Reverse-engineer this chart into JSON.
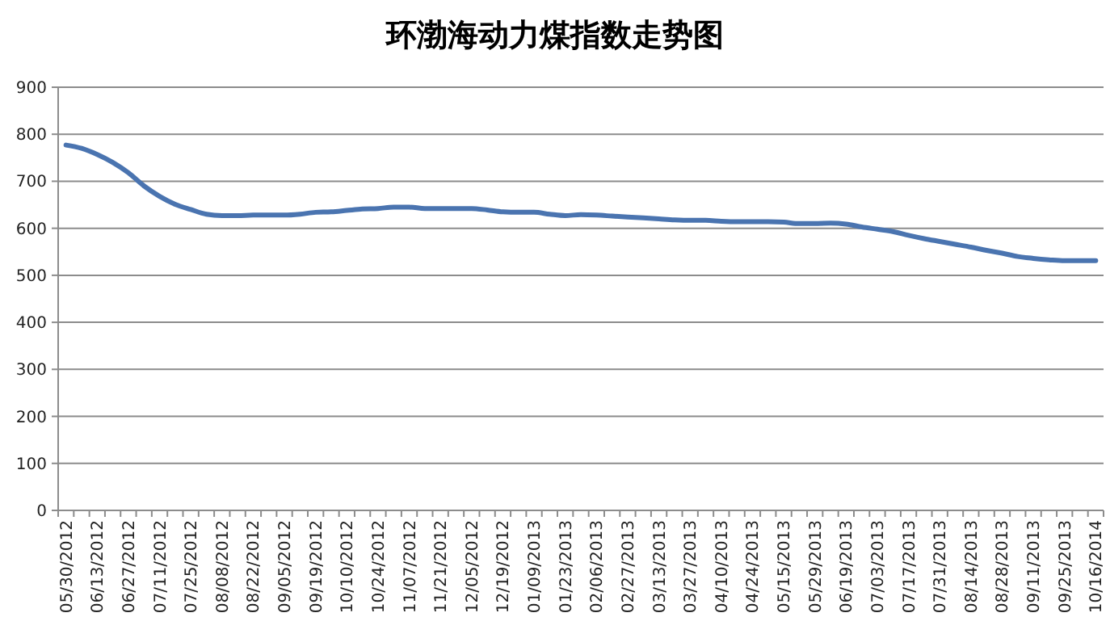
{
  "chart_data": {
    "type": "line",
    "title": "环渤海动力煤指数走势图",
    "categories": [
      "05/30/2012",
      null,
      "06/13/2012",
      null,
      "06/27/2012",
      null,
      "07/11/2012",
      null,
      "07/25/2012",
      null,
      "08/08/2012",
      null,
      "08/22/2012",
      null,
      "09/05/2012",
      null,
      "09/19/2012",
      null,
      "10/10/2012",
      null,
      "10/24/2012",
      null,
      "11/07/2012",
      null,
      "11/21/2012",
      null,
      "12/05/2012",
      null,
      "12/19/2012",
      null,
      "01/09/2013",
      null,
      "01/23/2013",
      null,
      "02/06/2013",
      null,
      "02/27/2013",
      null,
      "03/13/2013",
      null,
      "03/27/2013",
      null,
      "04/10/2013",
      null,
      "04/24/2013",
      null,
      "05/15/2013",
      null,
      "05/29/2013",
      null,
      "06/19/2013",
      null,
      "07/03/2013",
      null,
      "07/17/2013",
      null,
      "07/31/2013",
      null,
      "08/14/2013",
      null,
      "08/28/2013",
      null,
      "09/11/2013",
      null,
      "09/25/2013",
      null,
      "10/16/2014"
    ],
    "series": [
      {
        "color": "#4a74b0",
        "values": [
          777,
          770,
          757,
          740,
          718,
          690,
          668,
          651,
          640,
          630,
          627,
          627,
          628,
          628,
          628,
          630,
          634,
          635,
          638,
          641,
          642,
          645,
          645,
          642,
          642,
          642,
          642,
          639,
          635,
          634,
          634,
          630,
          627,
          629,
          628,
          626,
          624,
          622,
          620,
          618,
          617,
          617,
          615,
          614,
          614,
          614,
          613,
          610,
          610,
          611,
          609,
          603,
          598,
          593,
          585,
          578,
          572,
          566,
          560,
          553,
          547,
          540,
          536,
          533,
          531,
          531,
          531
        ]
      }
    ],
    "ylim": [
      0,
      900
    ],
    "yticks": [
      0,
      100,
      200,
      300,
      400,
      500,
      600,
      700,
      800,
      900
    ],
    "grid": "y",
    "marker": "none",
    "line_style": "solid"
  }
}
